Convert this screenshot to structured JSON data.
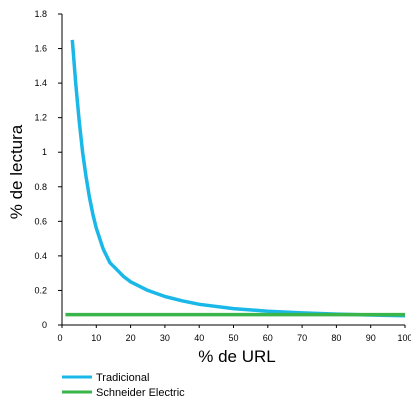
{
  "chart_data": {
    "type": "line",
    "xlabel": "% de URL",
    "ylabel": "% de lectura",
    "xlim": [
      0,
      100
    ],
    "ylim": [
      0,
      1.8
    ],
    "xticks": [
      0,
      10,
      20,
      30,
      40,
      50,
      60,
      70,
      80,
      90,
      100
    ],
    "yticks": [
      0,
      0.2,
      0.4,
      0.6,
      0.8,
      1,
      1.2,
      1.4,
      1.6,
      1.8
    ],
    "grid": false,
    "legend_position": "bottom-left",
    "series": [
      {
        "name": "Tradicional",
        "color": "#1ab8e8",
        "x": [
          3,
          4,
          5,
          6,
          7,
          8,
          9,
          10,
          12,
          14,
          16,
          18,
          20,
          25,
          30,
          35,
          40,
          50,
          60,
          70,
          80,
          90,
          100
        ],
        "y": [
          1.65,
          1.4,
          1.18,
          1.0,
          0.86,
          0.74,
          0.64,
          0.56,
          0.44,
          0.36,
          0.32,
          0.28,
          0.25,
          0.2,
          0.165,
          0.14,
          0.12,
          0.095,
          0.08,
          0.07,
          0.063,
          0.058,
          0.053
        ]
      },
      {
        "name": "Schneider Electric",
        "color": "#3ab54a",
        "x": [
          1,
          100
        ],
        "y": [
          0.06,
          0.06
        ]
      }
    ]
  }
}
